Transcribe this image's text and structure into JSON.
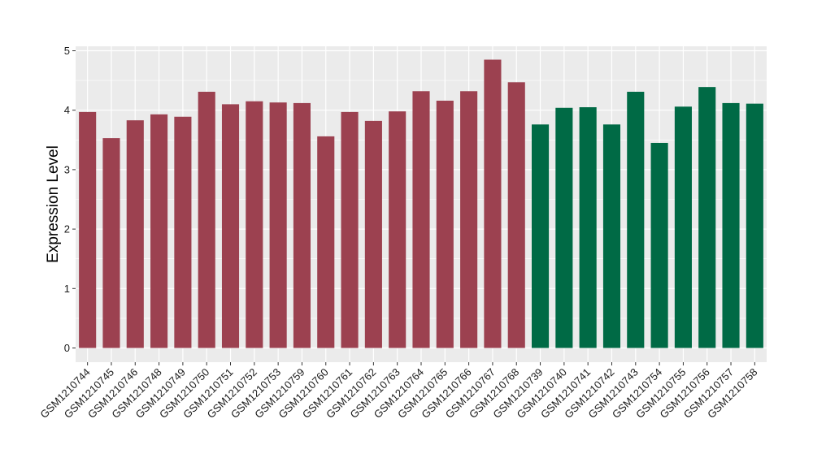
{
  "chart_data": {
    "type": "bar",
    "title": "",
    "xlabel": "",
    "ylabel": "Expression Level",
    "ylim": [
      0,
      5
    ],
    "yticks": [
      0,
      1,
      2,
      3,
      4,
      5
    ],
    "grid": true,
    "legend": "none",
    "categories": [
      "GSM1210744",
      "GSM1210745",
      "GSM1210746",
      "GSM1210748",
      "GSM1210749",
      "GSM1210750",
      "GSM1210751",
      "GSM1210752",
      "GSM1210753",
      "GSM1210759",
      "GSM1210760",
      "GSM1210761",
      "GSM1210762",
      "GSM1210763",
      "GSM1210764",
      "GSM1210765",
      "GSM1210766",
      "GSM1210767",
      "GSM1210768",
      "GSM1210739",
      "GSM1210740",
      "GSM1210741",
      "GSM1210742",
      "GSM1210743",
      "GSM1210754",
      "GSM1210755",
      "GSM1210756",
      "GSM1210757",
      "GSM1210758"
    ],
    "values": [
      3.97,
      3.53,
      3.83,
      3.93,
      3.89,
      4.31,
      4.1,
      4.15,
      4.13,
      4.12,
      3.56,
      3.97,
      3.82,
      3.98,
      4.32,
      4.16,
      4.32,
      4.85,
      4.47,
      3.76,
      4.04,
      4.05,
      3.76,
      4.31,
      3.45,
      4.06,
      4.39,
      4.12,
      4.11
    ],
    "group_sizes": [
      19,
      10
    ],
    "colors": [
      "#9c4150",
      "#006a45"
    ],
    "panel_background": "#ebebeb",
    "grid_color": "#ffffff"
  }
}
